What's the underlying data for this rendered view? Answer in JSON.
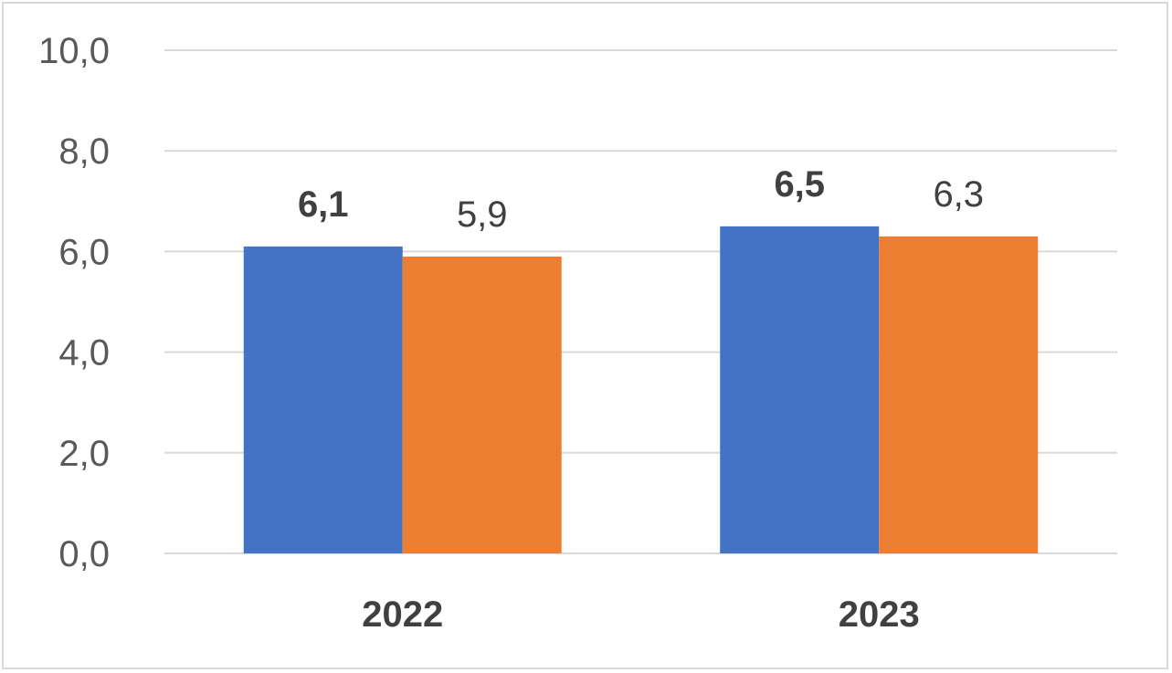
{
  "chart_data": {
    "type": "bar",
    "categories": [
      "2022",
      "2023"
    ],
    "series": [
      {
        "values": [
          6.1,
          6.5
        ],
        "labels": [
          "6,1",
          "6,5"
        ],
        "color": "#4472c4",
        "label_bold": true
      },
      {
        "values": [
          5.9,
          6.3
        ],
        "labels": [
          "5,9",
          "6,3"
        ],
        "color": "#ed7d31",
        "label_bold": false
      }
    ],
    "ylim": [
      0,
      10
    ],
    "yticks": [
      0,
      2,
      4,
      6,
      8,
      10
    ],
    "ytick_labels": [
      "0,0",
      "2,0",
      "4,0",
      "6,0",
      "8,0",
      "10,0"
    ],
    "grid": true,
    "gridline_color": "#d9d9d9"
  }
}
